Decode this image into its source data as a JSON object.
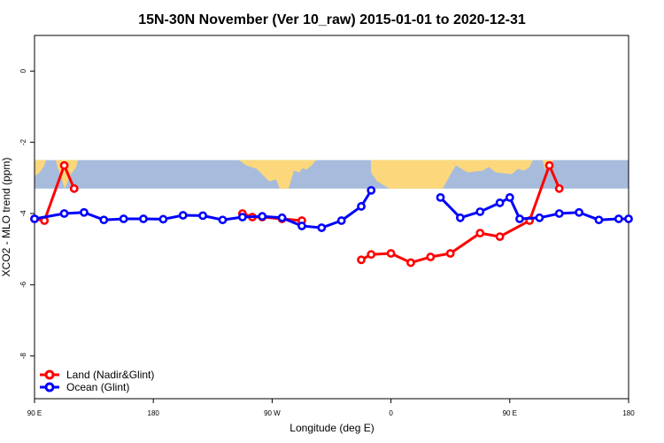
{
  "chart_data": {
    "type": "line",
    "title": "15N-30N November (Ver 10_raw)   2015-01-01 to 2020-12-31",
    "xlabel": "Longitude (deg E)",
    "ylabel": "XCO2 - MLO trend (ppm)",
    "xlim": [
      90,
      540
    ],
    "ylim": [
      -9.2,
      1.0
    ],
    "x_ticks": [
      {
        "value": 90,
        "label": "90 E"
      },
      {
        "value": 180,
        "label": "180"
      },
      {
        "value": 270,
        "label": "90 W"
      },
      {
        "value": 360,
        "label": "0"
      },
      {
        "value": 450,
        "label": "90 E"
      },
      {
        "value": 540,
        "label": "180"
      }
    ],
    "y_ticks": [
      {
        "value": 0,
        "label": "0"
      },
      {
        "value": -2,
        "label": "-2"
      },
      {
        "value": -4,
        "label": "-4"
      },
      {
        "value": -6,
        "label": "-6"
      },
      {
        "value": -8,
        "label": "-8"
      }
    ],
    "map_strip": {
      "y_top": -2.5,
      "y_bottom": -3.3,
      "ocean_color": "#a7bcdc",
      "land_color": "#fcd77b"
    },
    "grid": false,
    "legend_position": "bottom-left",
    "series": [
      {
        "name": "Land (Nadir&Glint)",
        "color": "#ff0000",
        "segments": [
          [
            [
              90,
              -4.15
            ],
            [
              97.5,
              -4.2
            ],
            [
              112.5,
              -2.65
            ],
            [
              120,
              -3.3
            ]
          ],
          [
            [
              247.5,
              -4.0
            ],
            [
              255,
              -4.1
            ],
            [
              262.5,
              -4.1
            ],
            [
              277.5,
              -4.15
            ],
            [
              292.5,
              -4.2
            ]
          ],
          [
            [
              337.5,
              -5.3
            ],
            [
              345,
              -5.15
            ],
            [
              360,
              -5.12
            ],
            [
              375,
              -5.38
            ],
            [
              390,
              -5.22
            ],
            [
              405,
              -5.12
            ],
            [
              427.5,
              -4.55
            ],
            [
              442.5,
              -4.65
            ],
            [
              465,
              -4.2
            ],
            [
              480,
              -2.65
            ],
            [
              487.5,
              -3.3
            ]
          ]
        ]
      },
      {
        "name": "Ocean (Glint)",
        "color": "#0000ff",
        "segments": [
          [
            [
              90,
              -4.15
            ],
            [
              112.5,
              -4.0
            ],
            [
              127.5,
              -3.97
            ],
            [
              142.5,
              -4.18
            ],
            [
              157.5,
              -4.15
            ],
            [
              172.5,
              -4.15
            ],
            [
              187.5,
              -4.16
            ],
            [
              202.5,
              -4.05
            ],
            [
              217.5,
              -4.06
            ],
            [
              232.5,
              -4.18
            ],
            [
              247.5,
              -4.1
            ],
            [
              262.5,
              -4.08
            ],
            [
              277.5,
              -4.12
            ],
            [
              292.5,
              -4.35
            ],
            [
              307.5,
              -4.4
            ],
            [
              322.5,
              -4.2
            ],
            [
              337.5,
              -3.8
            ],
            [
              345,
              -3.35
            ]
          ],
          [
            [
              397.5,
              -3.55
            ],
            [
              412.5,
              -4.12
            ],
            [
              427.5,
              -3.95
            ],
            [
              442.5,
              -3.7
            ],
            [
              450,
              -3.55
            ],
            [
              457.5,
              -4.15
            ],
            [
              472.5,
              -4.12
            ],
            [
              487.5,
              -4.0
            ],
            [
              502.5,
              -3.97
            ],
            [
              517.5,
              -4.18
            ],
            [
              532.5,
              -4.15
            ],
            [
              540,
              -4.15
            ]
          ]
        ]
      }
    ]
  }
}
